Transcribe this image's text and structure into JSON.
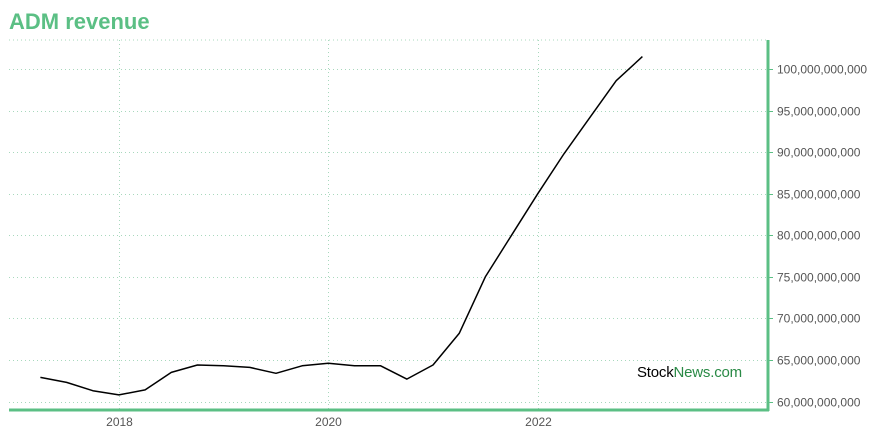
{
  "page": {
    "title": "ADM revenue",
    "watermark_part1": "Stock",
    "watermark_part2": "News.com"
  },
  "colors": {
    "title": "#5bbf84",
    "axis": "#5bbf84",
    "grid": "#a8d8bd",
    "line": "#000000",
    "tick_text": "#555555"
  },
  "chart_data": {
    "type": "line",
    "title": "ADM revenue",
    "xlabel": "",
    "ylabel": "",
    "x_ticks": [
      2018,
      2020,
      2022
    ],
    "x_tick_labels": [
      "2018",
      "2020",
      "2022"
    ],
    "y_ticks": [
      60000000000,
      65000000000,
      70000000000,
      75000000000,
      80000000000,
      85000000000,
      90000000000,
      95000000000,
      100000000000
    ],
    "y_tick_labels": [
      "60,000,000,000",
      "65,000,000,000",
      "70,000,000,000",
      "75,000,000,000",
      "80,000,000,000",
      "85,000,000,000",
      "90,000,000,000",
      "95,000,000,000",
      "100,000,000,000"
    ],
    "xlim": [
      2016.95,
      2024.2
    ],
    "ylim": [
      59100000000,
      103500000000
    ],
    "grid": true,
    "y_axis_position": "right",
    "x": [
      2017.25,
      2017.5,
      2017.75,
      2018.0,
      2018.25,
      2018.5,
      2018.75,
      2019.0,
      2019.25,
      2019.5,
      2019.75,
      2020.0,
      2020.25,
      2020.5,
      2020.75,
      2021.0,
      2021.25,
      2021.5,
      2021.75,
      2022.0,
      2022.25,
      2022.5,
      2022.75,
      2023.0
    ],
    "values": [
      62900000000,
      62300000000,
      61300000000,
      60800000000,
      61400000000,
      63500000000,
      64400000000,
      64300000000,
      64100000000,
      63400000000,
      64300000000,
      64600000000,
      64300000000,
      64300000000,
      62700000000,
      64400000000,
      68200000000,
      75000000000,
      80000000000,
      85000000000,
      89800000000,
      94200000000,
      98600000000,
      101500000000
    ]
  }
}
